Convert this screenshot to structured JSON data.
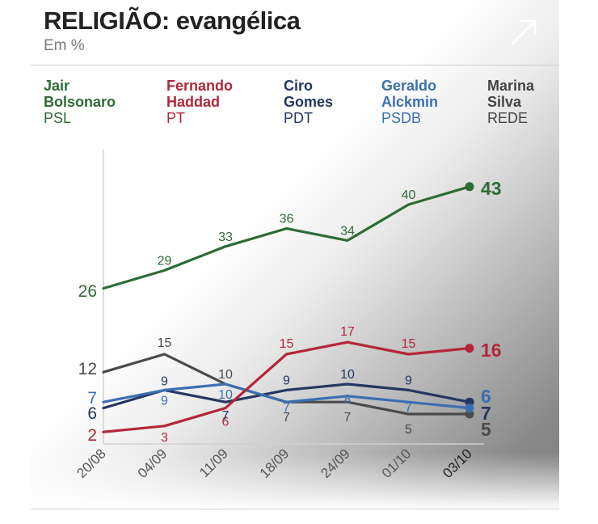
{
  "header": {
    "title": "RELIGIÃO: evangélica",
    "subtitle": "Em %"
  },
  "colors": {
    "bolsonaro": "#2e6b35",
    "haddad": "#b3263a",
    "ciro": "#253660",
    "alckmin": "#3a6fb0",
    "marina": "#4a4a4a"
  },
  "icons": {
    "expand": "expand-arrow-icon"
  },
  "legend": [
    {
      "name": "Jair\nBolsonaro",
      "party": "PSL"
    },
    {
      "name": "Fernando\nHaddad",
      "party": "PT"
    },
    {
      "name": "Ciro\nGomes",
      "party": "PDT"
    },
    {
      "name": "Geraldo\nAlckmin",
      "party": "PSDB"
    },
    {
      "name": "Marina\nSilva",
      "party": "REDE"
    }
  ],
  "chart_data": {
    "type": "line",
    "categories": [
      "20/08",
      "04/09",
      "11/09",
      "18/09",
      "24/09",
      "01/10",
      "03/10"
    ],
    "series": [
      {
        "name": "Jair Bolsonaro",
        "values": [
          26,
          29,
          33,
          36,
          34,
          40,
          43
        ]
      },
      {
        "name": "Fernando Haddad",
        "values": [
          2,
          3,
          6,
          15,
          17,
          15,
          16
        ]
      },
      {
        "name": "Ciro Gomes",
        "values": [
          6,
          9,
          7,
          9,
          10,
          9,
          7
        ]
      },
      {
        "name": "Geraldo Alckmin",
        "values": [
          7,
          9,
          10,
          7,
          8,
          7,
          6
        ]
      },
      {
        "name": "Marina Silva",
        "values": [
          12,
          15,
          10,
          7,
          7,
          5,
          5
        ]
      }
    ],
    "grid": false,
    "legend_position": "top"
  }
}
